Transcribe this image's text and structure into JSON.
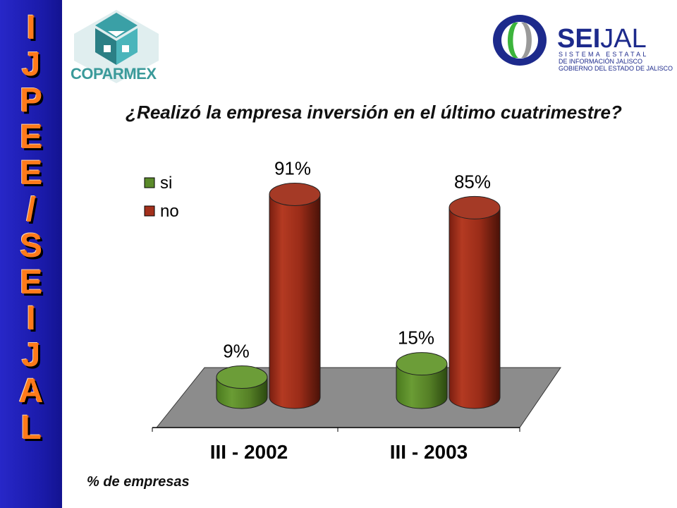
{
  "sidebar": {
    "letters": [
      "I",
      "J",
      "P",
      "E",
      "E",
      "/",
      "S",
      "E",
      "I",
      "J",
      "A",
      "L"
    ]
  },
  "logos": {
    "coparmex": "COPARMEX",
    "seijal_bold": "SEI",
    "seijal_rest": "JAL",
    "seijal_line1": "SISTEMA ESTATAL",
    "seijal_line2": "DE INFORMACIÓN JALISCO",
    "seijal_line3": "GOBIERNO DEL ESTADO DE JALISCO"
  },
  "footnote": "% de empresas",
  "colors": {
    "si": "#5a8a2a",
    "no": "#a3301c",
    "floor": "#8c8c8c",
    "sidebar": "#1f1fb3",
    "letters": "#ff7a1a"
  },
  "chart_data": {
    "type": "bar",
    "title": "¿Realizó la empresa inversión en el último cuatrimestre?",
    "categories": [
      "III - 2002",
      "III - 2003"
    ],
    "series": [
      {
        "name": "si",
        "values": [
          9,
          15
        ],
        "labels": [
          "9%",
          "15%"
        ]
      },
      {
        "name": "no",
        "values": [
          91,
          85
        ],
        "labels": [
          "91%",
          "85%"
        ]
      }
    ],
    "ylim": [
      0,
      100
    ],
    "legend": "top-left",
    "grid": false,
    "style": "3d-cylinder"
  }
}
